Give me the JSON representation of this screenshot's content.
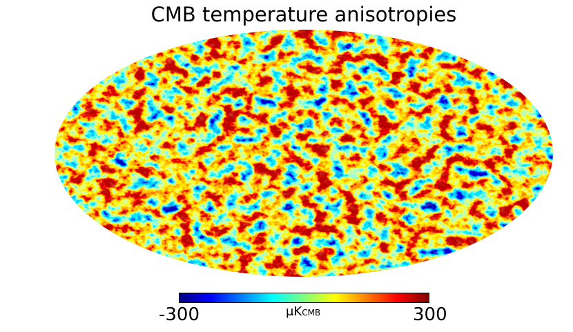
{
  "title": "CMB temperature anisotropies",
  "map": {
    "projection": "mollweide",
    "quantity": "CMB temperature anisotropy",
    "colormap": "jet",
    "value_range": [
      -300,
      300
    ]
  },
  "colorbar": {
    "min_label": "-300",
    "max_label": "300",
    "unit_label": "μK",
    "unit_subscript": "CMB",
    "colors": [
      "#00007f",
      "#0000ff",
      "#007fff",
      "#00ffff",
      "#7fff7f",
      "#ffff00",
      "#ff7f00",
      "#ff0000",
      "#7f0000"
    ]
  }
}
